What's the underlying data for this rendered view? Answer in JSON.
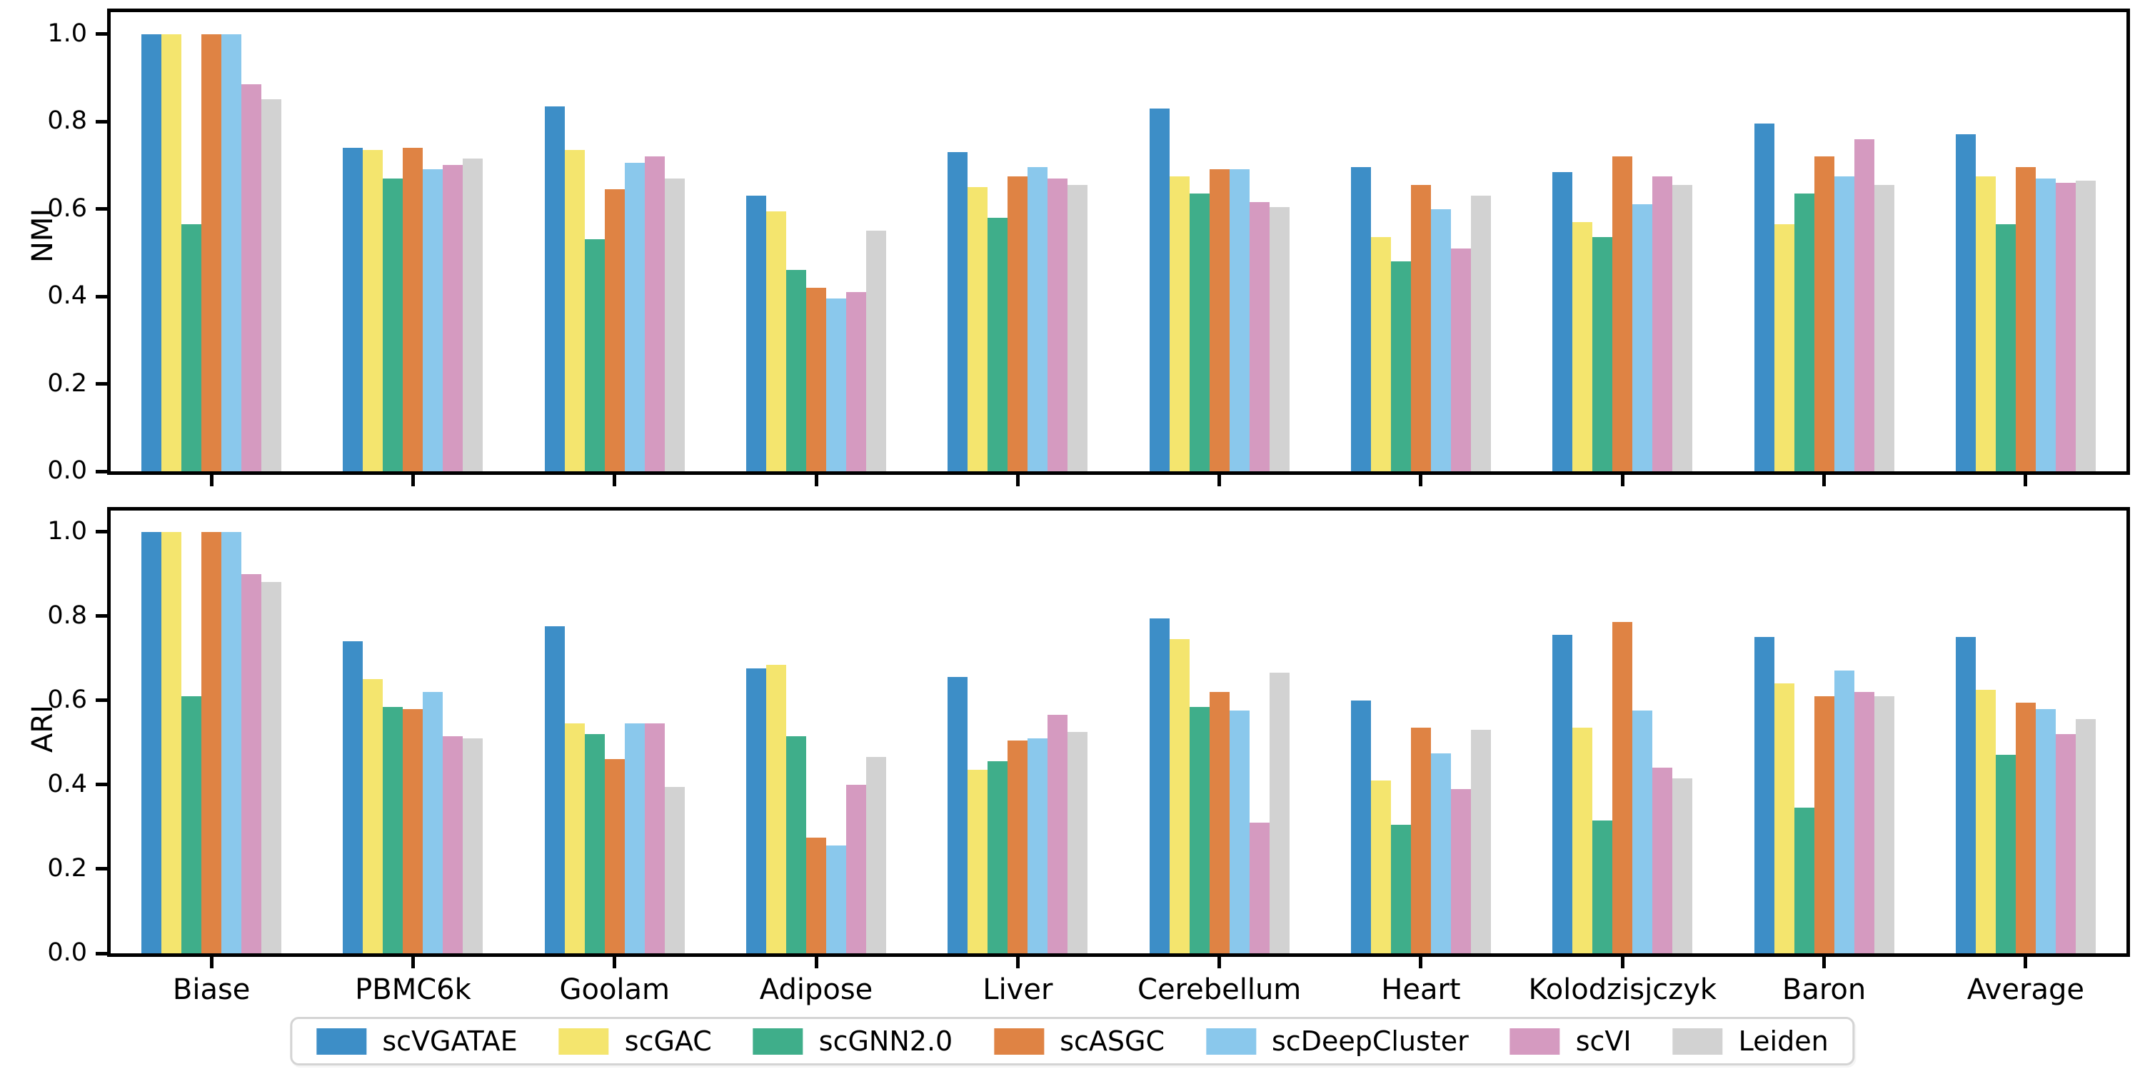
{
  "figure": {
    "background": "#ffffff",
    "spine_color": "#000000",
    "categories": [
      "Biase",
      "PBMC6k",
      "Goolam",
      "Adipose",
      "Liver",
      "Cerebellum",
      "Heart",
      "Kolodzisjczyk",
      "Baron",
      "Average"
    ],
    "legend": {
      "position": "bottom-center",
      "items": [
        {
          "label": "scVGATAE",
          "color": "#3d8ec7"
        },
        {
          "label": "scGAC",
          "color": "#f4e56e"
        },
        {
          "label": "scGNN2.0",
          "color": "#3fae8a"
        },
        {
          "label": "scASGC",
          "color": "#df8344"
        },
        {
          "label": "scDeepCluster",
          "color": "#8ac8ec"
        },
        {
          "label": "scVI",
          "color": "#d59ac0"
        },
        {
          "label": "Leiden",
          "color": "#d2d2d2"
        }
      ]
    }
  },
  "chart_data": [
    {
      "type": "bar",
      "title": "",
      "xlabel": "",
      "ylabel": "NMI",
      "ylim": [
        0,
        1.05
      ],
      "yticks": [
        "0.0",
        "0.2",
        "0.4",
        "0.6",
        "0.8",
        "1.0"
      ],
      "grid": false,
      "show_x_labels": false,
      "categories": [
        "Biase",
        "PBMC6k",
        "Goolam",
        "Adipose",
        "Liver",
        "Cerebellum",
        "Heart",
        "Kolodzisjczyk",
        "Baron",
        "Average"
      ],
      "series": [
        {
          "name": "scVGATAE",
          "color": "#3d8ec7",
          "values": [
            1.0,
            0.74,
            0.835,
            0.63,
            0.73,
            0.83,
            0.695,
            0.685,
            0.795,
            0.77
          ]
        },
        {
          "name": "scGAC",
          "color": "#f4e56e",
          "values": [
            1.0,
            0.735,
            0.735,
            0.595,
            0.65,
            0.675,
            0.535,
            0.57,
            0.565,
            0.675
          ]
        },
        {
          "name": "scGNN2.0",
          "color": "#3fae8a",
          "values": [
            0.565,
            0.67,
            0.53,
            0.46,
            0.58,
            0.635,
            0.48,
            0.535,
            0.635,
            0.565
          ]
        },
        {
          "name": "scASGC",
          "color": "#df8344",
          "values": [
            1.0,
            0.74,
            0.645,
            0.42,
            0.675,
            0.69,
            0.655,
            0.72,
            0.72,
            0.695
          ]
        },
        {
          "name": "scDeepCluster",
          "color": "#8ac8ec",
          "values": [
            1.0,
            0.69,
            0.705,
            0.395,
            0.695,
            0.69,
            0.6,
            0.61,
            0.675,
            0.67
          ]
        },
        {
          "name": "scVI",
          "color": "#d59ac0",
          "values": [
            0.885,
            0.7,
            0.72,
            0.41,
            0.67,
            0.615,
            0.51,
            0.675,
            0.76,
            0.66
          ]
        },
        {
          "name": "Leiden",
          "color": "#d2d2d2",
          "values": [
            0.85,
            0.715,
            0.67,
            0.55,
            0.655,
            0.605,
            0.63,
            0.655,
            0.655,
            0.665
          ]
        }
      ]
    },
    {
      "type": "bar",
      "title": "",
      "xlabel": "",
      "ylabel": "ARI",
      "ylim": [
        0,
        1.05
      ],
      "yticks": [
        "0.0",
        "0.2",
        "0.4",
        "0.6",
        "0.8",
        "1.0"
      ],
      "grid": false,
      "show_x_labels": true,
      "categories": [
        "Biase",
        "PBMC6k",
        "Goolam",
        "Adipose",
        "Liver",
        "Cerebellum",
        "Heart",
        "Kolodzisjczyk",
        "Baron",
        "Average"
      ],
      "series": [
        {
          "name": "scVGATAE",
          "color": "#3d8ec7",
          "values": [
            1.0,
            0.74,
            0.775,
            0.675,
            0.655,
            0.795,
            0.6,
            0.755,
            0.75,
            0.75
          ]
        },
        {
          "name": "scGAC",
          "color": "#f4e56e",
          "values": [
            1.0,
            0.65,
            0.545,
            0.685,
            0.435,
            0.745,
            0.41,
            0.535,
            0.64,
            0.625
          ]
        },
        {
          "name": "scGNN2.0",
          "color": "#3fae8a",
          "values": [
            0.61,
            0.585,
            0.52,
            0.515,
            0.455,
            0.585,
            0.305,
            0.315,
            0.345,
            0.47
          ]
        },
        {
          "name": "scASGC",
          "color": "#df8344",
          "values": [
            1.0,
            0.58,
            0.46,
            0.275,
            0.505,
            0.62,
            0.535,
            0.785,
            0.61,
            0.595
          ]
        },
        {
          "name": "scDeepCluster",
          "color": "#8ac8ec",
          "values": [
            1.0,
            0.62,
            0.545,
            0.255,
            0.51,
            0.575,
            0.475,
            0.575,
            0.67,
            0.58
          ]
        },
        {
          "name": "scVI",
          "color": "#d59ac0",
          "values": [
            0.9,
            0.515,
            0.545,
            0.4,
            0.565,
            0.31,
            0.39,
            0.44,
            0.62,
            0.52
          ]
        },
        {
          "name": "Leiden",
          "color": "#d2d2d2",
          "values": [
            0.88,
            0.51,
            0.395,
            0.465,
            0.525,
            0.665,
            0.53,
            0.415,
            0.61,
            0.555
          ]
        }
      ]
    }
  ]
}
